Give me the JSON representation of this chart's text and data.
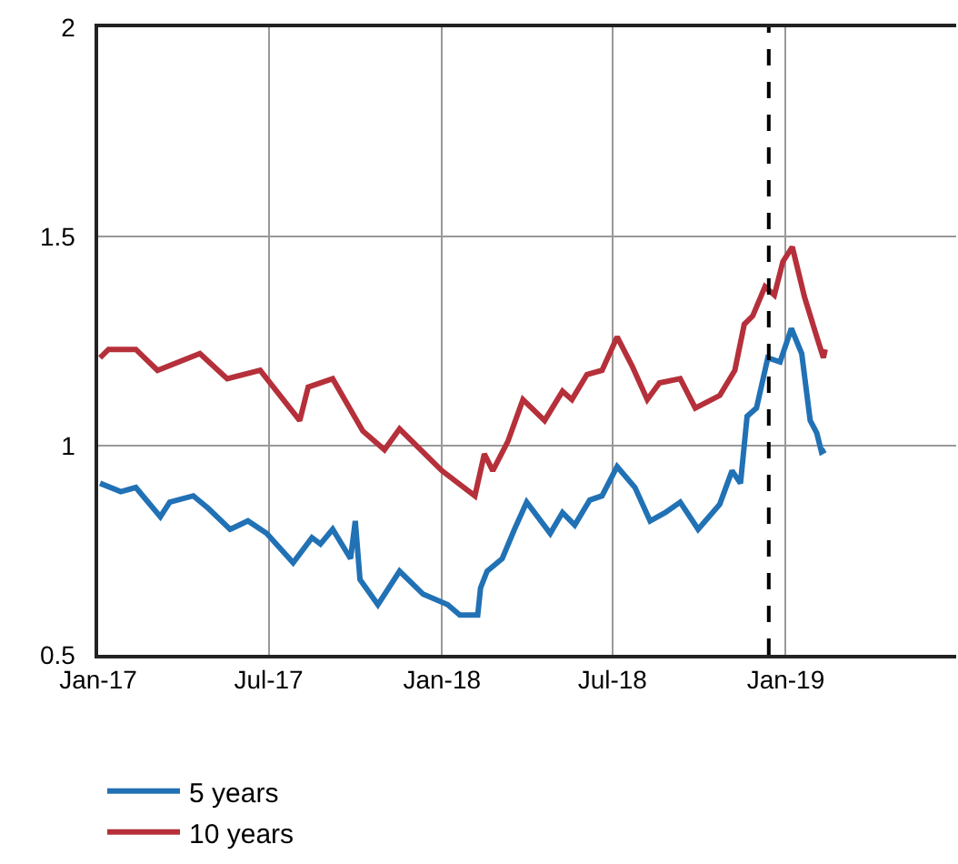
{
  "chart_data": {
    "type": "line",
    "xlim": [
      "2017-01-01",
      "2019-07-01"
    ],
    "xticks": [
      {
        "value": "2017-01-01",
        "label": "Jan-17"
      },
      {
        "value": "2017-07-01",
        "label": "Jul-17"
      },
      {
        "value": "2018-01-01",
        "label": "Jan-18"
      },
      {
        "value": "2018-07-01",
        "label": "Jul-18"
      },
      {
        "value": "2019-01-01",
        "label": "Jan-19"
      }
    ],
    "ylim": [
      0.5,
      2
    ],
    "yticks": [
      0.5,
      1,
      1.5,
      2
    ],
    "grid": true,
    "legend": "bottom left",
    "line_style": "solid",
    "marker": "none",
    "ref_lines": [
      {
        "axis": "x",
        "value": "2018-12-14",
        "color": "#000000",
        "line_style": "dashed"
      }
    ],
    "series": [
      {
        "name": "5 years",
        "color": "#2171b5",
        "x": [
          "2017-01-03",
          "2017-01-25",
          "2017-02-10",
          "2017-03-08",
          "2017-03-18",
          "2017-04-12",
          "2017-04-28",
          "2017-05-21",
          "2017-06-09",
          "2017-06-29",
          "2017-07-27",
          "2017-08-16",
          "2017-08-25",
          "2017-09-07",
          "2017-09-26",
          "2017-10-01",
          "2017-10-06",
          "2017-10-25",
          "2017-11-17",
          "2017-12-12",
          "2018-01-07",
          "2018-01-20",
          "2018-02-08",
          "2018-02-11",
          "2018-02-18",
          "2018-03-06",
          "2018-03-19",
          "2018-04-01",
          "2018-04-26",
          "2018-05-09",
          "2018-05-22",
          "2018-06-07",
          "2018-06-20",
          "2018-07-06",
          "2018-07-25",
          "2018-08-10",
          "2018-08-26",
          "2018-09-11",
          "2018-09-30",
          "2018-10-23",
          "2018-11-05",
          "2018-11-14",
          "2018-11-21",
          "2018-12-01",
          "2018-12-13",
          "2018-12-26",
          "2019-01-07",
          "2019-01-18",
          "2019-01-27",
          "2019-02-03",
          "2019-02-08",
          "2019-02-12"
        ],
        "values": [
          0.91,
          0.89,
          0.9,
          0.83,
          0.865,
          0.88,
          0.85,
          0.8,
          0.82,
          0.79,
          0.72,
          0.78,
          0.765,
          0.8,
          0.73,
          0.82,
          0.68,
          0.62,
          0.7,
          0.645,
          0.62,
          0.595,
          0.595,
          0.66,
          0.7,
          0.73,
          0.8,
          0.865,
          0.79,
          0.84,
          0.81,
          0.87,
          0.88,
          0.95,
          0.9,
          0.82,
          0.84,
          0.865,
          0.8,
          0.86,
          0.94,
          0.91,
          1.07,
          1.09,
          1.21,
          1.2,
          1.28,
          1.22,
          1.06,
          1.03,
          0.985,
          0.99
        ]
      },
      {
        "name": "10 years",
        "color": "#b5303a",
        "x": [
          "2017-01-03",
          "2017-01-12",
          "2017-02-10",
          "2017-03-05",
          "2017-04-19",
          "2017-05-18",
          "2017-06-22",
          "2017-08-03",
          "2017-08-12",
          "2017-09-07",
          "2017-10-09",
          "2017-11-01",
          "2017-11-17",
          "2018-01-01",
          "2018-02-05",
          "2018-02-15",
          "2018-02-24",
          "2018-03-12",
          "2018-03-28",
          "2018-04-20",
          "2018-05-09",
          "2018-05-19",
          "2018-06-04",
          "2018-06-20",
          "2018-07-06",
          "2018-07-22",
          "2018-08-07",
          "2018-08-20",
          "2018-09-11",
          "2018-09-27",
          "2018-10-23",
          "2018-11-08",
          "2018-11-18",
          "2018-11-27",
          "2018-12-10",
          "2018-12-20",
          "2018-12-29",
          "2019-01-08",
          "2019-01-21",
          "2019-02-03",
          "2019-02-10",
          "2019-02-12"
        ],
        "values": [
          1.21,
          1.23,
          1.23,
          1.18,
          1.22,
          1.16,
          1.18,
          1.06,
          1.14,
          1.16,
          1.035,
          0.99,
          1.04,
          0.94,
          0.88,
          0.98,
          0.94,
          1.01,
          1.11,
          1.06,
          1.13,
          1.11,
          1.17,
          1.18,
          1.26,
          1.19,
          1.11,
          1.15,
          1.16,
          1.09,
          1.12,
          1.18,
          1.29,
          1.31,
          1.38,
          1.36,
          1.44,
          1.475,
          1.355,
          1.26,
          1.21,
          1.23
        ]
      }
    ]
  }
}
